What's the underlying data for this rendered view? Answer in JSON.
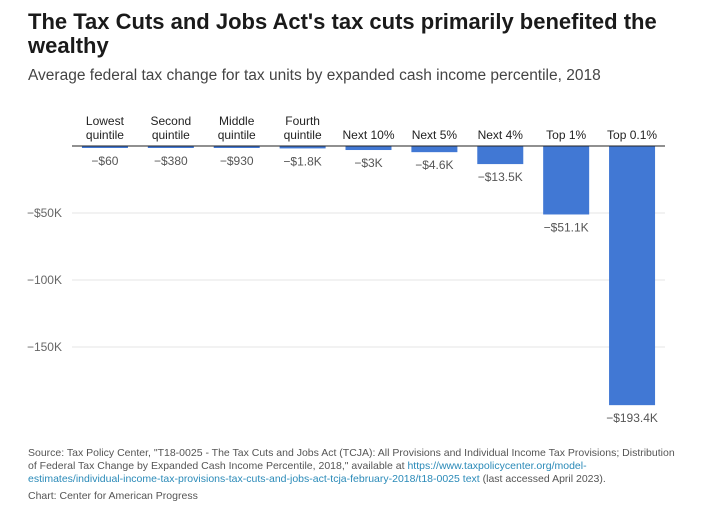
{
  "title": "The Tax Cuts and Jobs Act's tax cuts primarily benefited the wealthy",
  "subtitle": "Average federal tax change for tax units by expanded cash income percentile, 2018",
  "chart_data": {
    "type": "bar",
    "orientation": "vertical",
    "categories": [
      [
        "Lowest",
        "quintile"
      ],
      [
        "Second",
        "quintile"
      ],
      [
        "Middle",
        "quintile"
      ],
      [
        "Fourth",
        "quintile"
      ],
      [
        "Next 10%"
      ],
      [
        "Next 5%"
      ],
      [
        "Next 4%"
      ],
      [
        "Top 1%"
      ],
      [
        "Top 0.1%"
      ]
    ],
    "values": [
      -60,
      -380,
      -930,
      -1800,
      -3000,
      -4600,
      -13500,
      -51100,
      -193400
    ],
    "value_labels": [
      "−$60",
      "−$380",
      "−$930",
      "−$1.8K",
      "−$3K",
      "−$4.6K",
      "−$13.5K",
      "−$51.1K",
      "−$193.4K"
    ],
    "y_ticks": [
      -50000,
      -100000,
      -150000
    ],
    "y_tick_labels": [
      "−$50K",
      "−100K",
      "−150K"
    ],
    "ylim": [
      -195000,
      0
    ],
    "bar_color": "#4178d4",
    "xlabel": "",
    "ylabel": ""
  },
  "source": {
    "text_before": "Source: Tax Policy Center, \"T18-0025 - The Tax Cuts and Jobs Act (TCJA): All Provisions and Individual Income Tax Provisions; Distribution of Federal Tax Change by Expanded Cash Income Percentile, 2018,\" available at ",
    "link_text": "https://www.taxpolicycenter.org/model-estimates/individual-income-tax-provisions-tax-cuts-and-jobs-act-tcja-february-2018/t18-0025 text",
    "text_after": " (last accessed April 2023)."
  },
  "credit": "Chart: Center for American Progress"
}
